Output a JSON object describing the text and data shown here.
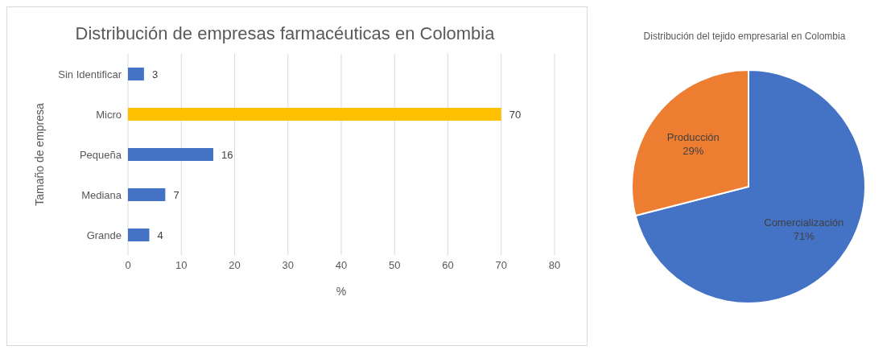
{
  "chart_data": [
    {
      "type": "bar",
      "orientation": "horizontal",
      "title": "Distribución de empresas farmacéuticas en Colombia",
      "xlabel": "%",
      "ylabel": "Tamaño de empresa",
      "categories": [
        "Sin Identificar",
        "Micro",
        "Pequeña",
        "Mediana",
        "Grande"
      ],
      "values": [
        3,
        70,
        16,
        7,
        4
      ],
      "colors": [
        "#4472c4",
        "#ffc000",
        "#4472c4",
        "#4472c4",
        "#4472c4"
      ],
      "xlim": [
        0,
        80
      ],
      "xticks": [
        0,
        10,
        20,
        30,
        40,
        50,
        60,
        70,
        80
      ],
      "grid": "x",
      "data_labels": true,
      "legend": false
    },
    {
      "type": "pie",
      "title": "Distribución del tejido empresarial en Colombia",
      "categories": [
        "Comercialización",
        "Producción"
      ],
      "values": [
        71,
        29
      ],
      "colors": [
        "#4472c4",
        "#ed7d31"
      ],
      "value_labels": [
        "71%",
        "29%"
      ],
      "legend": false
    }
  ]
}
